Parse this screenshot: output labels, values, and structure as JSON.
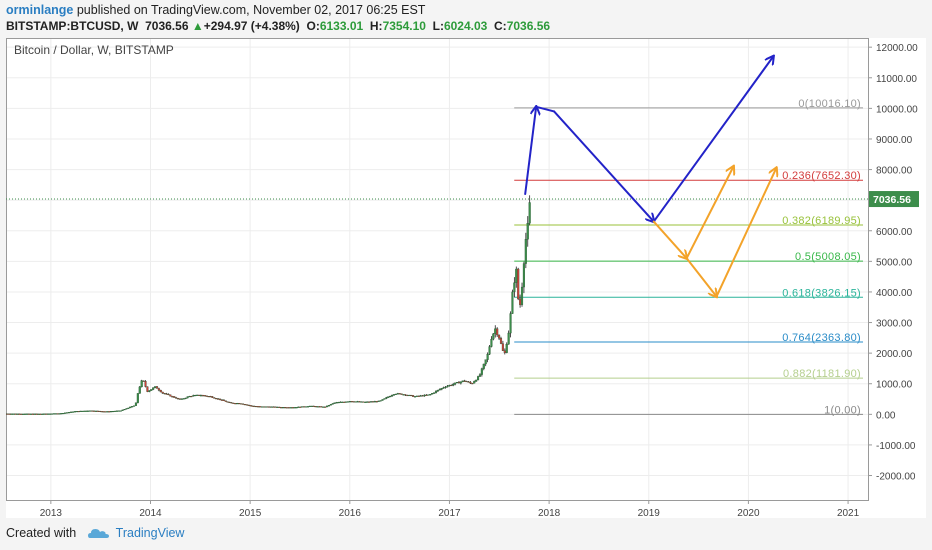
{
  "header": {
    "user": "orminlange",
    "published": " published on TradingView.com, November 02, 2017 06:25 EST",
    "symbol": "BITSTAMP:BTCUSD, W",
    "last": "7036.56",
    "up_arrow": "▲",
    "change": "+294.97 (+4.38%)",
    "o_label": "O:",
    "o_value": "6133.01",
    "h_label": "H:",
    "h_value": "7354.10",
    "l_label": "L:",
    "l_value": "6024.03",
    "c_label": "C:",
    "c_value": "7036.56"
  },
  "footer": {
    "created_with": "Created with",
    "brand": "TradingView",
    "logo_icon": "tradingview-cloud-icon"
  },
  "chart_data": {
    "type": "candlestick",
    "title": "Bitcoin / Dollar, W, BITSTAMP",
    "ylim": [
      -2800,
      12300
    ],
    "y_ticks": [
      "12000.00",
      "11000.00",
      "10000.00",
      "9000.00",
      "8000.00",
      "7000.00",
      "6000.00",
      "5000.00",
      "4000.00",
      "3000.00",
      "2000.00",
      "1000.00",
      "0.00",
      "-1000.00",
      "-2000.00"
    ],
    "y_tick_values": [
      12000,
      11000,
      10000,
      9000,
      8000,
      7000,
      6000,
      5000,
      4000,
      3000,
      2000,
      1000,
      0,
      -1000,
      -2000
    ],
    "x_ticks": [
      "2013",
      "2014",
      "2015",
      "2016",
      "2017",
      "2018",
      "2019",
      "2020",
      "2021"
    ],
    "x_tick_values": [
      2013,
      2014,
      2015,
      2016,
      2017,
      2018,
      2019,
      2020,
      2021
    ],
    "xlim": [
      2012.55,
      2021.2
    ],
    "last_price": 7036.56,
    "last_price_label": "7036.56",
    "price_path": [
      [
        2012.55,
        20
      ],
      [
        2012.7,
        15
      ],
      [
        2012.9,
        13
      ],
      [
        2013.1,
        30
      ],
      [
        2013.25,
        100
      ],
      [
        2013.4,
        120
      ],
      [
        2013.55,
        90
      ],
      [
        2013.7,
        120
      ],
      [
        2013.85,
        300
      ],
      [
        2013.88,
        800
      ],
      [
        2013.92,
        1150
      ],
      [
        2013.97,
        750
      ],
      [
        2014.05,
        900
      ],
      [
        2014.12,
        700
      ],
      [
        2014.2,
        600
      ],
      [
        2014.3,
        480
      ],
      [
        2014.4,
        600
      ],
      [
        2014.5,
        630
      ],
      [
        2014.6,
        580
      ],
      [
        2014.7,
        480
      ],
      [
        2014.8,
        370
      ],
      [
        2014.9,
        360
      ],
      [
        2015.0,
        280
      ],
      [
        2015.1,
        250
      ],
      [
        2015.2,
        250
      ],
      [
        2015.3,
        230
      ],
      [
        2015.45,
        230
      ],
      [
        2015.6,
        270
      ],
      [
        2015.75,
        240
      ],
      [
        2015.85,
        380
      ],
      [
        2016.0,
        430
      ],
      [
        2016.15,
        400
      ],
      [
        2016.3,
        430
      ],
      [
        2016.45,
        680
      ],
      [
        2016.55,
        650
      ],
      [
        2016.65,
        580
      ],
      [
        2016.8,
        640
      ],
      [
        2016.95,
        900
      ],
      [
        2017.05,
        1000
      ],
      [
        2017.15,
        1100
      ],
      [
        2017.22,
        1000
      ],
      [
        2017.3,
        1250
      ],
      [
        2017.38,
        1900
      ],
      [
        2017.42,
        2500
      ],
      [
        2017.46,
        2800
      ],
      [
        2017.5,
        2500
      ],
      [
        2017.55,
        1900
      ],
      [
        2017.6,
        2800
      ],
      [
        2017.64,
        4200
      ],
      [
        2017.67,
        4700
      ],
      [
        2017.7,
        3300
      ],
      [
        2017.73,
        4300
      ],
      [
        2017.76,
        5600
      ],
      [
        2017.79,
        6200
      ],
      [
        2017.81,
        7036
      ]
    ],
    "fib_levels": [
      {
        "ratio": "0",
        "value": 10016.1,
        "label": "0(10016.10)",
        "color": "#9a9a9a"
      },
      {
        "ratio": "0.236",
        "value": 7652.3,
        "label": "0.236(7652.30)",
        "color": "#d33c3c"
      },
      {
        "ratio": "0.382",
        "value": 6189.95,
        "label": "0.382(6189.95)",
        "color": "#98c23a"
      },
      {
        "ratio": "0.5",
        "value": 5008.05,
        "label": "0.5(5008.05)",
        "color": "#39b84a"
      },
      {
        "ratio": "0.618",
        "value": 3826.15,
        "label": "0.618(3826.15)",
        "color": "#2bb49a"
      },
      {
        "ratio": "0.764",
        "value": 2363.8,
        "label": "0.764(2363.80)",
        "color": "#2a8cc8"
      },
      {
        "ratio": "0.882",
        "value": 1181.9,
        "label": "0.882(1181.90)",
        "color": "#b5cf8e"
      },
      {
        "ratio": "1",
        "value": 0.0,
        "label": "1(0.00)",
        "color": "#8a8a8a"
      }
    ],
    "fib_x_range": [
      2017.65,
      2021.15
    ],
    "annotations": {
      "blue_path": [
        [
          2017.76,
          7200
        ],
        [
          2017.87,
          10050
        ],
        [
          2018.05,
          9900
        ],
        [
          2019.05,
          6300
        ],
        [
          2020.25,
          11700
        ]
      ],
      "orange_path_a": [
        [
          2019.05,
          6300
        ],
        [
          2019.38,
          5100
        ],
        [
          2019.85,
          8100
        ]
      ],
      "orange_path_b": [
        [
          2019.38,
          5100
        ],
        [
          2019.68,
          3850
        ],
        [
          2020.28,
          8050
        ]
      ]
    }
  }
}
